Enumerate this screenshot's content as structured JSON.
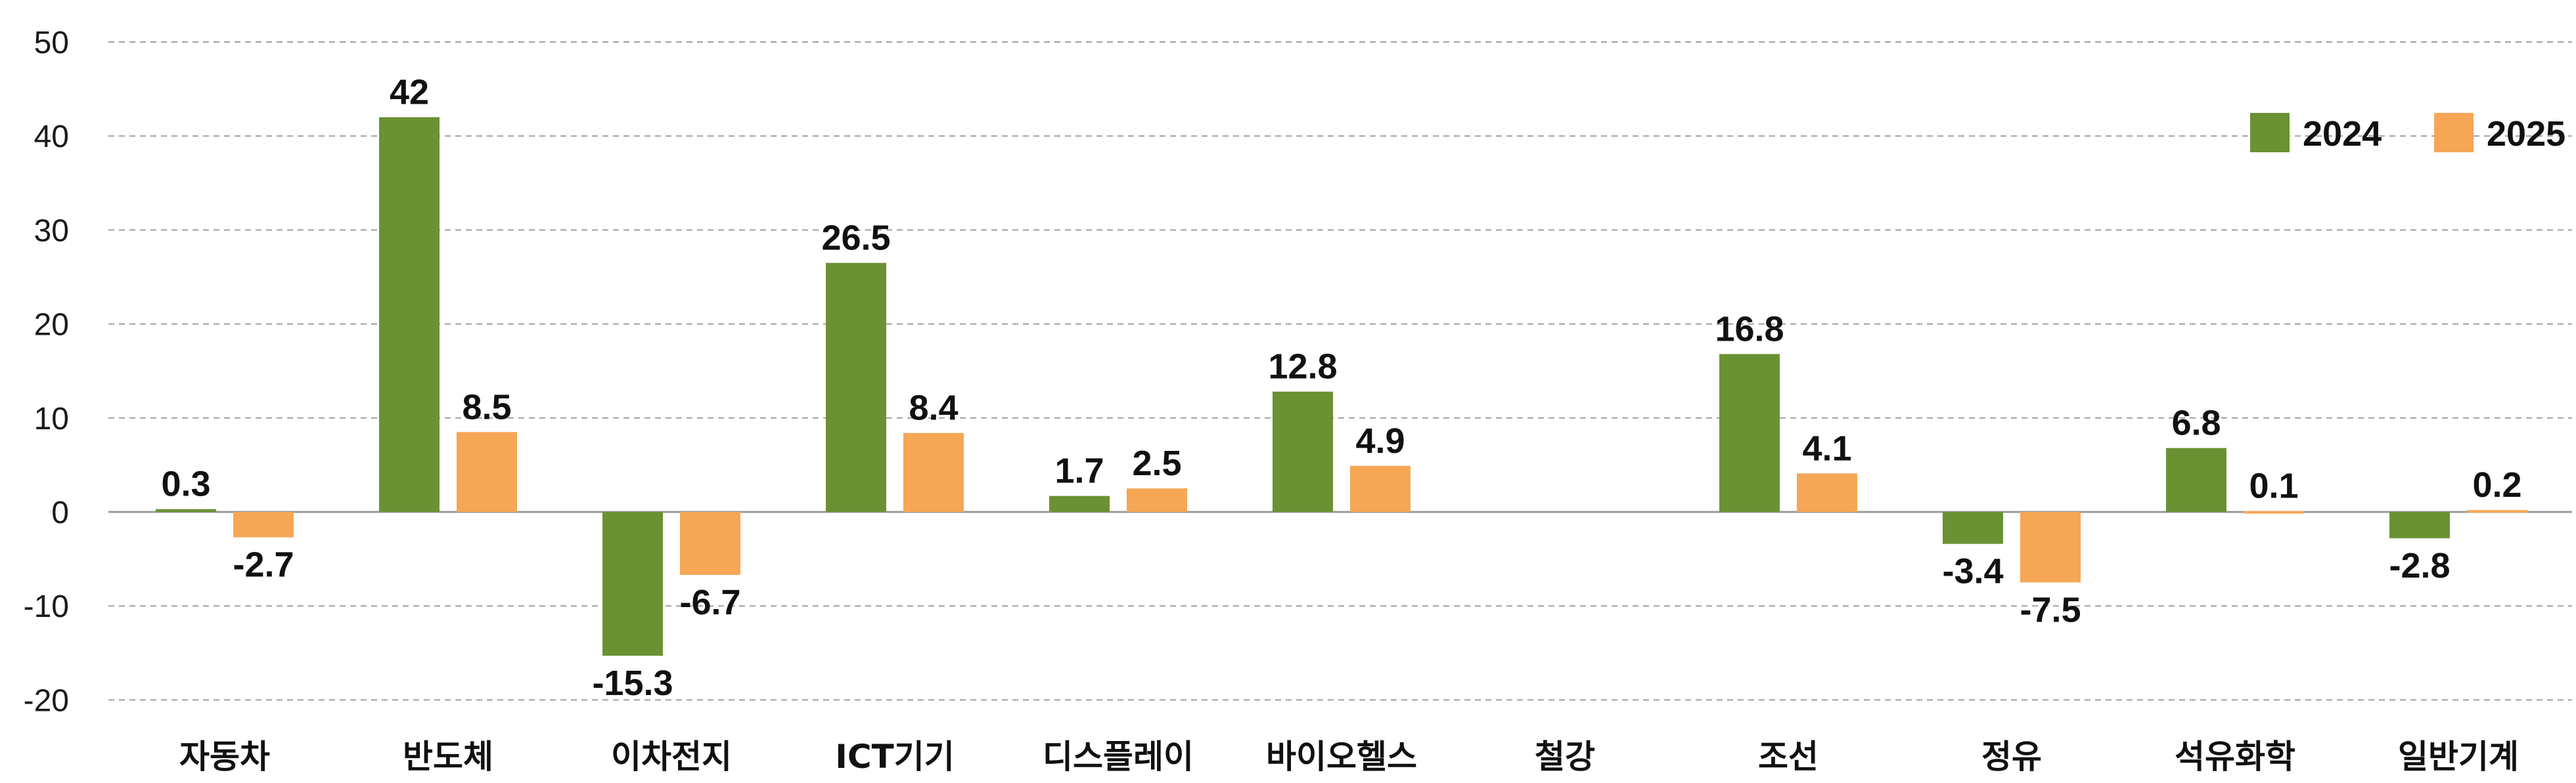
{
  "chart_data": {
    "type": "bar",
    "categories": [
      "자동차",
      "반도체",
      "이차전지",
      "ICT기기",
      "디스플레이",
      "바이오헬스",
      "철강",
      "조선",
      "정유",
      "석유화학",
      "일반기계"
    ],
    "series": [
      {
        "name": "2024",
        "color": "#6a9233",
        "values": [
          0.3,
          42,
          -15.3,
          26.5,
          1.7,
          12.8,
          null,
          16.8,
          -3.4,
          6.8,
          -2.8
        ]
      },
      {
        "name": "2025",
        "color": "#f5a755",
        "values": [
          -2.7,
          8.5,
          -6.7,
          8.4,
          2.5,
          4.9,
          null,
          4.1,
          -7.5,
          0.1,
          0.2
        ]
      }
    ],
    "value_labels": [
      [
        "0.3",
        "42",
        "-15.3",
        "26.5",
        "1.7",
        "12.8",
        null,
        "16.8",
        "-3.4",
        "6.8",
        "-2.8"
      ],
      [
        "-2.7",
        "8.5",
        "-6.7",
        "8.4",
        "2.5",
        "4.9",
        null,
        "4.1",
        "-7.5",
        "0.1",
        "0.2"
      ]
    ],
    "ylim": [
      -20,
      50
    ],
    "yticks": [
      -20,
      -10,
      0,
      10,
      20,
      30,
      40,
      50
    ],
    "title": "",
    "xlabel": "",
    "ylabel": "",
    "grid": true,
    "legend_position": "top-right"
  }
}
